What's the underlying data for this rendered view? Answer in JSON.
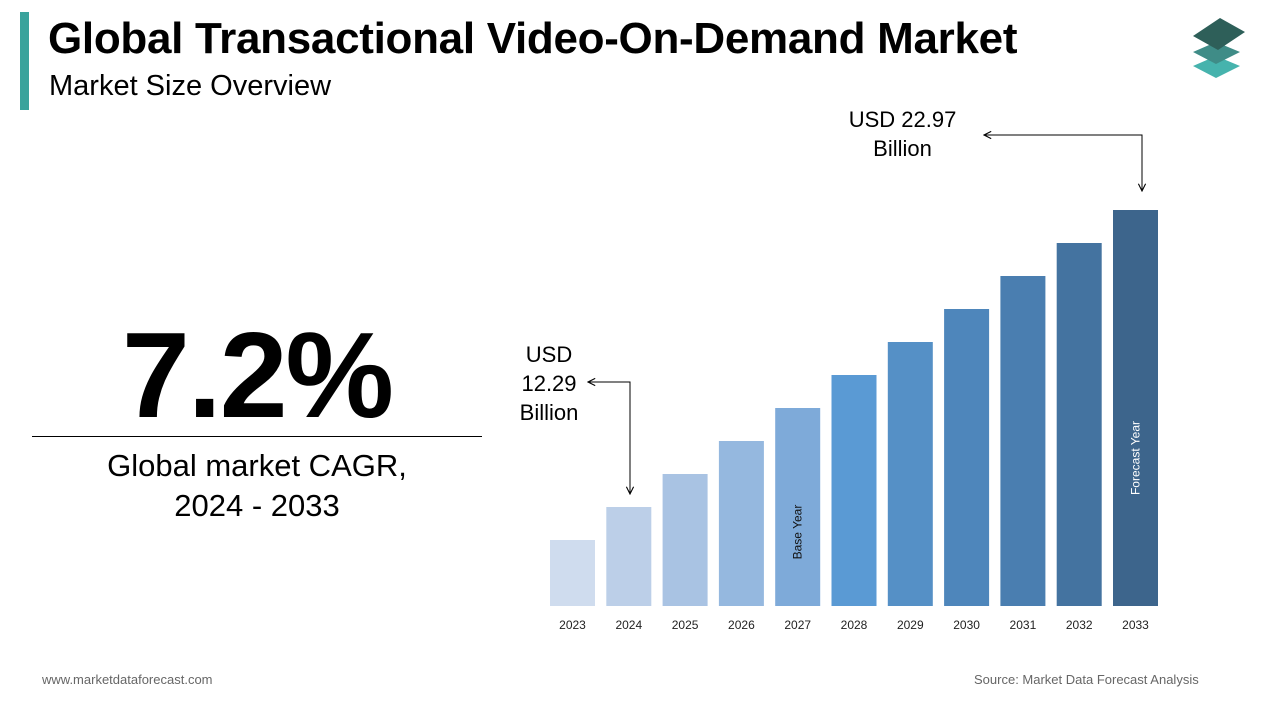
{
  "header": {
    "title": "Global Transactional Video-On-Demand Market",
    "subtitle": "Market Size Overview"
  },
  "kpi": {
    "value": "7.2%",
    "label_line1": "Global market CAGR,",
    "label_line2": "2024 - 2033"
  },
  "chart_data": {
    "type": "bar",
    "categories": [
      "2023",
      "2024",
      "2025",
      "2026",
      "2027",
      "2028",
      "2029",
      "2030",
      "2031",
      "2032",
      "2033"
    ],
    "annotations": [
      {
        "category": "2024",
        "value": 12.29,
        "unit": "USD Billion",
        "line1": "USD",
        "line2": "12.29",
        "line3": "Billion"
      },
      {
        "category": "2033",
        "value": 22.97,
        "unit": "USD Billion",
        "line1": "USD 22.97",
        "line2": "Billion"
      }
    ],
    "bar_labels": {
      "2027": "Base Year",
      "2033": "Forecast Year"
    },
    "colors": [
      "#cfdcee",
      "#bccfe8",
      "#a9c3e3",
      "#95b8df",
      "#7eaad9",
      "#5a9ad4",
      "#5590c6",
      "#4e86bb",
      "#4a7eb0",
      "#4473a0",
      "#3d658c"
    ],
    "grid": false,
    "legend": "none"
  },
  "footer": {
    "website": "www.marketdataforecast.com",
    "source": "Source: Market Data Forecast Analysis"
  },
  "logo": {
    "icon": "stacked-layers-icon",
    "colors": [
      "#2e6b63",
      "#3f8c87",
      "#46b3ad"
    ]
  }
}
